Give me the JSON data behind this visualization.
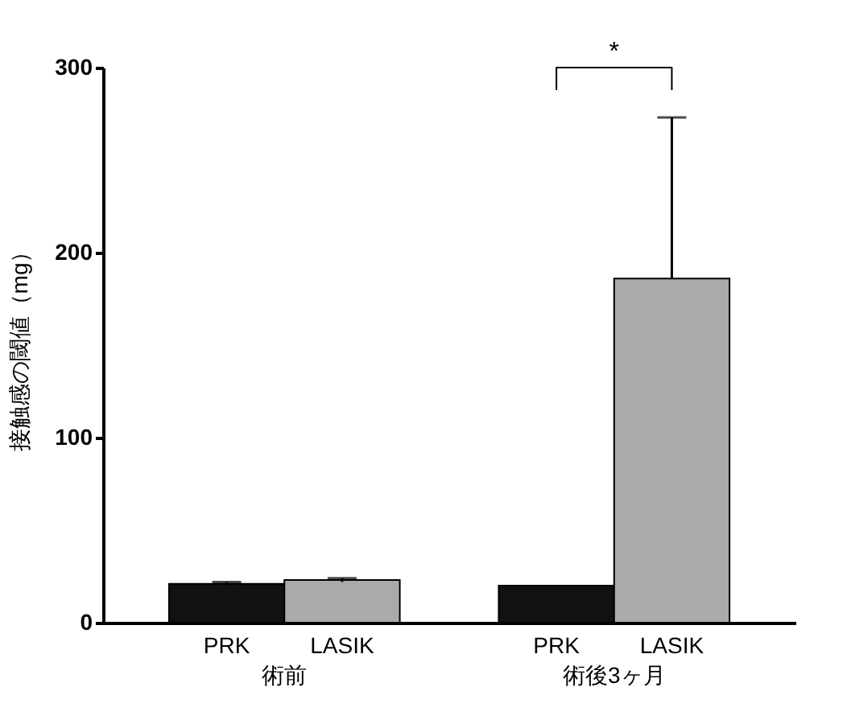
{
  "chart_data": {
    "type": "bar",
    "categories": [
      "術前",
      "術後3ヶ月"
    ],
    "ylabel": "接触感の閾値（mg）",
    "ylim": [
      0,
      300
    ],
    "yticks": [
      0,
      100,
      200,
      300
    ],
    "grid": false,
    "series": [
      {
        "name": "PRK",
        "color": "#111111",
        "values": [
          21,
          20
        ],
        "errors": [
          1,
          null
        ]
      },
      {
        "name": "LASIK",
        "color": "#aaaaaa",
        "values": [
          23,
          186
        ],
        "errors": [
          1,
          [
            186,
            273
          ]
        ]
      }
    ],
    "annotations": [
      "*"
    ]
  }
}
